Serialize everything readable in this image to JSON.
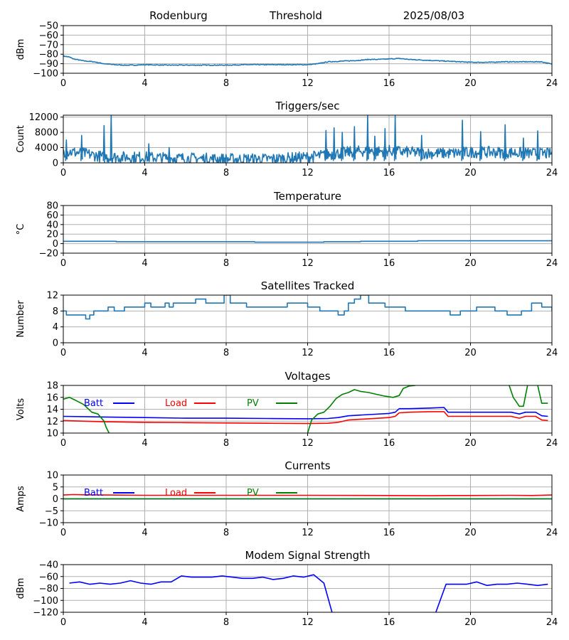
{
  "header": {
    "site": "Rodenburg",
    "mode": "Threshold",
    "date": "2025/08/03"
  },
  "x_axis": {
    "range": [
      0,
      24
    ],
    "ticks": [
      0,
      4,
      8,
      12,
      16,
      20,
      24
    ]
  },
  "colors": {
    "default": "#1f77b4",
    "batt": "#0000ff",
    "load": "#ff0000",
    "pv": "#008000",
    "modem": "#0000ff"
  },
  "chart_data": [
    {
      "type": "line",
      "title": "",
      "ylabel": "dBm",
      "ylim": [
        -100,
        -50
      ],
      "yticks": [
        -100,
        -90,
        -80,
        -70,
        -60,
        -50
      ],
      "grid": true,
      "series": [
        {
          "color": "#1f77b4",
          "noise": 0.4,
          "x": [
            0,
            0.3,
            0.5,
            1,
            1.5,
            2,
            2.5,
            3,
            3.5,
            4,
            5,
            6,
            7,
            8,
            9,
            10,
            11,
            12,
            12.5,
            13,
            13.5,
            14,
            14.5,
            15,
            15.5,
            16,
            16.5,
            17,
            17.5,
            18,
            18.5,
            19,
            19.5,
            20,
            20.5,
            21,
            21.5,
            22,
            22.5,
            23,
            23.5,
            24
          ],
          "y": [
            -82,
            -83,
            -85,
            -87,
            -88,
            -90,
            -91,
            -91.5,
            -91.5,
            -91,
            -91.5,
            -91.5,
            -91.5,
            -91.5,
            -91,
            -91,
            -91,
            -91,
            -90,
            -88,
            -87.5,
            -87,
            -86.5,
            -85.5,
            -85.5,
            -85,
            -84.5,
            -85.5,
            -86,
            -86.5,
            -87,
            -87.5,
            -88,
            -88.5,
            -88.5,
            -88.5,
            -88,
            -88,
            -88,
            -88,
            -88,
            -90.5
          ]
        }
      ]
    },
    {
      "type": "line",
      "title": "Triggers/sec",
      "ylabel": "Count",
      "ylim": [
        0,
        12500
      ],
      "yticks": [
        0,
        4000,
        8000,
        12000
      ],
      "grid": true,
      "series": [
        {
          "color": "#1f77b4",
          "noise": 1500,
          "x": [
            0,
            0.5,
            1,
            2,
            3,
            4,
            5,
            6,
            7,
            8,
            9,
            10,
            11,
            12,
            12.5,
            13,
            14,
            14.5,
            15,
            15.5,
            16,
            16.5,
            17,
            18,
            19,
            20,
            21,
            22,
            23,
            24
          ],
          "y": [
            3000,
            2800,
            2500,
            1500,
            1500,
            1500,
            1300,
            1200,
            1100,
            1000,
            1000,
            1000,
            1200,
            1500,
            1800,
            2200,
            2800,
            3000,
            3200,
            3000,
            3200,
            3000,
            2800,
            2500,
            2500,
            2800,
            2800,
            2700,
            2500,
            2400
          ]
        }
      ],
      "spikes": [
        [
          0.15,
          6000
        ],
        [
          0.9,
          7200
        ],
        [
          2.0,
          9800
        ],
        [
          2.35,
          12500
        ],
        [
          4.2,
          5000
        ],
        [
          5.2,
          4000
        ],
        [
          12.9,
          8500
        ],
        [
          13.3,
          9200
        ],
        [
          13.7,
          8000
        ],
        [
          14.3,
          9500
        ],
        [
          14.95,
          12500
        ],
        [
          15.3,
          7000
        ],
        [
          15.8,
          9000
        ],
        [
          16.3,
          12300
        ],
        [
          17.6,
          7200
        ],
        [
          19.6,
          11200
        ],
        [
          20.5,
          8200
        ],
        [
          21.7,
          10000
        ],
        [
          22.6,
          6500
        ],
        [
          23.3,
          8400
        ]
      ]
    },
    {
      "type": "line",
      "title": "Temperature",
      "ylabel": "°C",
      "ylim": [
        -20,
        80
      ],
      "yticks": [
        -20,
        0,
        20,
        40,
        60,
        80
      ],
      "grid": true,
      "series": [
        {
          "color": "#1f77b4",
          "x": [
            0,
            2.6,
            2.6,
            9.4,
            9.4,
            12.8,
            12.8,
            14.6,
            14.6,
            17.4,
            17.4,
            24
          ],
          "y": [
            5,
            5,
            4,
            4,
            3,
            3,
            4,
            4,
            5,
            5,
            6,
            6
          ]
        }
      ]
    },
    {
      "type": "line",
      "title": "Satellites Tracked",
      "ylabel": "Number",
      "ylim": [
        0,
        12
      ],
      "yticks": [
        0,
        4,
        8,
        12
      ],
      "grid": true,
      "step": true,
      "series": [
        {
          "color": "#1f77b4",
          "x": [
            0,
            0.15,
            0.6,
            1.1,
            1.3,
            1.5,
            1.8,
            2.2,
            2.5,
            2.8,
            3.0,
            3.3,
            3.8,
            4.0,
            4.3,
            4.6,
            5.0,
            5.2,
            5.4,
            6.0,
            6.5,
            7.0,
            7.9,
            8.2,
            8.6,
            9.0,
            9.5,
            10.5,
            11.0,
            11.2,
            12.0,
            12.6,
            13.5,
            13.8,
            14.0,
            14.3,
            14.6,
            15.0,
            15.4,
            15.8,
            16.4,
            16.8,
            17.5,
            18.0,
            19.0,
            19.5,
            20.3,
            21.2,
            21.8,
            22.5,
            23.0,
            23.5,
            24
          ],
          "y": [
            8,
            7,
            7,
            6,
            7,
            8,
            8,
            9,
            8,
            8,
            9,
            9,
            9,
            10,
            9,
            9,
            10,
            9,
            10,
            10,
            11,
            10,
            12,
            10,
            10,
            9,
            9,
            9,
            10,
            10,
            9,
            8,
            7,
            8,
            10,
            11,
            12,
            10,
            10,
            9,
            9,
            8,
            8,
            8,
            7,
            8,
            9,
            8,
            7,
            8,
            10,
            9,
            8
          ]
        }
      ]
    },
    {
      "type": "line",
      "title": "Voltages",
      "ylabel": "Volts",
      "ylim": [
        10,
        18
      ],
      "yticks": [
        10,
        12,
        14,
        16,
        18
      ],
      "grid": true,
      "legend": [
        "Batt",
        "Load",
        "PV"
      ],
      "series": [
        {
          "name": "Batt",
          "color": "#0000ff",
          "x": [
            0,
            2,
            4,
            6,
            8,
            10,
            12,
            13,
            13.5,
            14,
            15,
            16,
            16.3,
            16.5,
            17,
            18,
            18.7,
            18.9,
            20,
            21,
            22,
            22.4,
            22.7,
            23.2,
            23.5,
            23.8
          ],
          "y": [
            12.8,
            12.7,
            12.6,
            12.5,
            12.5,
            12.45,
            12.4,
            12.45,
            12.6,
            12.9,
            13.1,
            13.3,
            13.5,
            14.1,
            14.1,
            14.2,
            14.3,
            13.5,
            13.5,
            13.5,
            13.5,
            13.2,
            13.5,
            13.5,
            12.9,
            12.8
          ]
        },
        {
          "name": "Load",
          "color": "#ff0000",
          "x": [
            0,
            2,
            4,
            6,
            8,
            10,
            12,
            13,
            13.5,
            14,
            15,
            16,
            16.3,
            16.5,
            17,
            18,
            18.7,
            18.9,
            20,
            21,
            22,
            22.4,
            22.7,
            23.2,
            23.5,
            23.8
          ],
          "y": [
            12.1,
            11.9,
            11.8,
            11.75,
            11.7,
            11.65,
            11.6,
            11.65,
            11.8,
            12.2,
            12.4,
            12.6,
            12.8,
            13.4,
            13.5,
            13.6,
            13.6,
            12.8,
            12.8,
            12.8,
            12.8,
            12.5,
            12.8,
            12.8,
            12.2,
            12.1
          ]
        },
        {
          "name": "PV",
          "color": "#008000",
          "x": [
            0,
            0.3,
            0.6,
            1.0,
            1.4,
            1.7,
            2.0,
            2.1,
            2.25
          ],
          "y": [
            15.7,
            16.0,
            15.5,
            14.8,
            13.5,
            13.2,
            12.0,
            11.0,
            10
          ]
        },
        {
          "name": "PV",
          "color": "#008000",
          "x": [
            12,
            12.2,
            12.5,
            12.8,
            13.1,
            13.4,
            13.7,
            14.0,
            14.3,
            14.6,
            15.0,
            15.4,
            15.8,
            16.2,
            16.5,
            16.7,
            17.0,
            17.3
          ],
          "y": [
            10,
            12.2,
            13.2,
            13.5,
            14.5,
            15.8,
            16.5,
            16.8,
            17.3,
            17.0,
            16.8,
            16.5,
            16.2,
            16.0,
            16.3,
            17.5,
            17.9,
            18
          ]
        },
        {
          "name": "PV",
          "color": "#008000",
          "x": [
            21.9,
            22.1,
            22.4,
            22.6,
            22.8
          ],
          "y": [
            18,
            16.0,
            14.5,
            14.5,
            18
          ]
        },
        {
          "name": "PV",
          "color": "#008000",
          "x": [
            23.3,
            23.5,
            23.8
          ],
          "y": [
            18,
            15.0,
            15.0
          ]
        }
      ]
    },
    {
      "type": "line",
      "title": "Currents",
      "ylabel": "Amps",
      "ylim": [
        -10,
        10
      ],
      "yticks": [
        -10,
        -5,
        0,
        5,
        10
      ],
      "grid": true,
      "legend": [
        "Batt",
        "Load",
        "PV"
      ],
      "series": [
        {
          "name": "Batt",
          "color": "#0000ff",
          "x": [
            0,
            24
          ],
          "y": [
            0,
            0
          ]
        },
        {
          "name": "PV",
          "color": "#008000",
          "x": [
            0,
            24
          ],
          "y": [
            0,
            0
          ]
        },
        {
          "name": "Load",
          "color": "#ff0000",
          "x": [
            0,
            0.5,
            1,
            2,
            4,
            8,
            12,
            16,
            18,
            19,
            20,
            22,
            23,
            24
          ],
          "y": [
            1.6,
            1.8,
            1.7,
            1.6,
            1.5,
            1.5,
            1.5,
            1.4,
            1.3,
            1.4,
            1.4,
            1.5,
            1.4,
            1.6
          ]
        }
      ]
    },
    {
      "type": "line",
      "title": "Modem Signal Strength",
      "ylabel": "dBm",
      "ylim": [
        -120,
        -40
      ],
      "yticks": [
        -120,
        -100,
        -80,
        -60,
        -40
      ],
      "grid": true,
      "series": [
        {
          "color": "#0000ff",
          "x": [
            0.3,
            0.8,
            1.3,
            1.8,
            2.3,
            2.8,
            3.3,
            3.8,
            4.3,
            4.8,
            5.3,
            5.8,
            6.3,
            6.8,
            7.3,
            7.8,
            8.3,
            8.8,
            9.3,
            9.8,
            10.3,
            10.8,
            11.3,
            11.8,
            12.3,
            12.8,
            13.2
          ],
          "y": [
            -71,
            -69,
            -73,
            -71,
            -73,
            -71,
            -67,
            -71,
            -73,
            -69,
            -69,
            -59,
            -61,
            -61,
            -61,
            -59,
            -61,
            -63,
            -63,
            -61,
            -65,
            -63,
            -59,
            -61,
            -57,
            -71,
            -120
          ]
        },
        {
          "color": "#0000ff",
          "x": [
            18.3,
            18.8,
            19.3,
            19.8,
            20.3,
            20.8,
            21.3,
            21.8,
            22.3,
            22.8,
            23.3,
            23.8
          ],
          "y": [
            -120,
            -73,
            -73,
            -73,
            -69,
            -75,
            -73,
            -73,
            -71,
            -73,
            -75,
            -73
          ]
        }
      ]
    }
  ]
}
